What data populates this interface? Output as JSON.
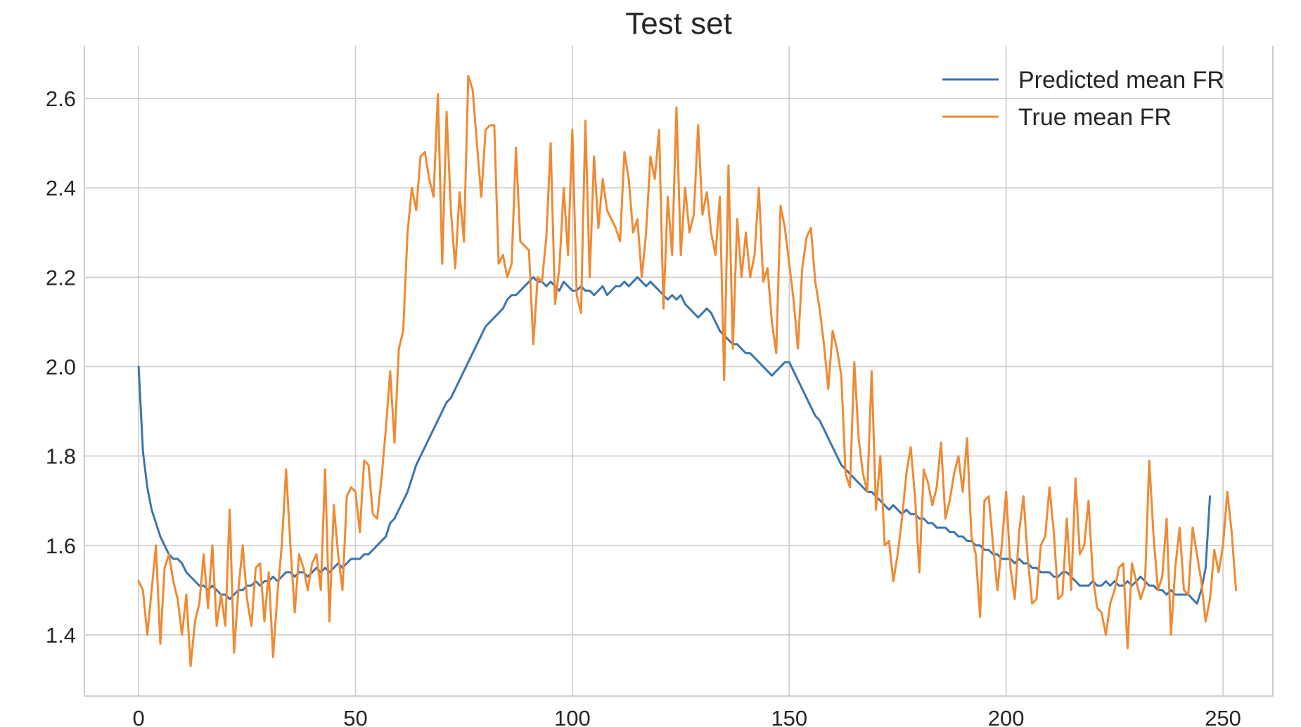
{
  "chart_data": {
    "type": "line",
    "title": "Test set",
    "xlabel": "",
    "ylabel": "",
    "xlim": [
      -12.5,
      261.5
    ],
    "ylim": [
      1.263,
      2.718
    ],
    "xticks": [
      0,
      50,
      100,
      150,
      200,
      250
    ],
    "xtick_labels": [
      "0",
      "50",
      "100",
      "150",
      "200",
      "250"
    ],
    "yticks": [
      1.4,
      1.6,
      1.8,
      2.0,
      2.2,
      2.4,
      2.6
    ],
    "ytick_labels": [
      "1.4",
      "1.6",
      "1.8",
      "2.0",
      "2.2",
      "2.4",
      "2.6"
    ],
    "grid": true,
    "legend_position": "top-right",
    "series": [
      {
        "name": "Predicted mean FR",
        "color": "#3b75af",
        "values": [
          2.0,
          1.81,
          1.73,
          1.68,
          1.65,
          1.62,
          1.6,
          1.58,
          1.57,
          1.57,
          1.56,
          1.54,
          1.53,
          1.52,
          1.51,
          1.51,
          1.5,
          1.51,
          1.5,
          1.49,
          1.49,
          1.48,
          1.49,
          1.5,
          1.5,
          1.51,
          1.51,
          1.52,
          1.51,
          1.52,
          1.52,
          1.53,
          1.52,
          1.53,
          1.54,
          1.54,
          1.53,
          1.54,
          1.54,
          1.53,
          1.54,
          1.55,
          1.54,
          1.55,
          1.54,
          1.55,
          1.56,
          1.55,
          1.56,
          1.57,
          1.57,
          1.57,
          1.58,
          1.58,
          1.59,
          1.6,
          1.61,
          1.62,
          1.65,
          1.66,
          1.68,
          1.7,
          1.72,
          1.75,
          1.78,
          1.8,
          1.82,
          1.84,
          1.86,
          1.88,
          1.9,
          1.92,
          1.93,
          1.95,
          1.97,
          1.99,
          2.01,
          2.03,
          2.05,
          2.07,
          2.09,
          2.1,
          2.11,
          2.12,
          2.13,
          2.15,
          2.16,
          2.16,
          2.17,
          2.18,
          2.19,
          2.2,
          2.19,
          2.19,
          2.18,
          2.19,
          2.18,
          2.17,
          2.19,
          2.18,
          2.17,
          2.17,
          2.18,
          2.17,
          2.17,
          2.16,
          2.17,
          2.18,
          2.16,
          2.17,
          2.18,
          2.18,
          2.19,
          2.18,
          2.19,
          2.2,
          2.19,
          2.18,
          2.19,
          2.18,
          2.17,
          2.16,
          2.15,
          2.16,
          2.15,
          2.16,
          2.14,
          2.13,
          2.12,
          2.11,
          2.12,
          2.13,
          2.12,
          2.1,
          2.08,
          2.07,
          2.06,
          2.05,
          2.05,
          2.04,
          2.03,
          2.03,
          2.02,
          2.01,
          2.0,
          1.99,
          1.98,
          1.99,
          2.0,
          2.01,
          2.01,
          1.99,
          1.97,
          1.95,
          1.93,
          1.91,
          1.89,
          1.88,
          1.86,
          1.84,
          1.82,
          1.8,
          1.78,
          1.77,
          1.76,
          1.75,
          1.74,
          1.73,
          1.72,
          1.72,
          1.71,
          1.7,
          1.69,
          1.68,
          1.69,
          1.68,
          1.67,
          1.68,
          1.67,
          1.67,
          1.66,
          1.66,
          1.65,
          1.65,
          1.64,
          1.64,
          1.64,
          1.63,
          1.63,
          1.62,
          1.62,
          1.61,
          1.61,
          1.6,
          1.6,
          1.59,
          1.59,
          1.58,
          1.58,
          1.57,
          1.57,
          1.57,
          1.56,
          1.57,
          1.56,
          1.56,
          1.55,
          1.55,
          1.54,
          1.54,
          1.54,
          1.53,
          1.53,
          1.54,
          1.54,
          1.53,
          1.52,
          1.51,
          1.51,
          1.51,
          1.52,
          1.51,
          1.51,
          1.52,
          1.51,
          1.52,
          1.51,
          1.51,
          1.52,
          1.51,
          1.52,
          1.53,
          1.52,
          1.51,
          1.51,
          1.5,
          1.5,
          1.49,
          1.5,
          1.49,
          1.49,
          1.49,
          1.49,
          1.48,
          1.47,
          1.5,
          1.55,
          1.71
        ]
      },
      {
        "name": "True mean FR",
        "color": "#ef8a33",
        "values": [
          1.52,
          1.5,
          1.4,
          1.5,
          1.6,
          1.38,
          1.55,
          1.58,
          1.52,
          1.48,
          1.4,
          1.49,
          1.33,
          1.43,
          1.47,
          1.58,
          1.46,
          1.6,
          1.42,
          1.49,
          1.42,
          1.68,
          1.36,
          1.5,
          1.6,
          1.48,
          1.42,
          1.55,
          1.56,
          1.43,
          1.54,
          1.35,
          1.49,
          1.6,
          1.77,
          1.6,
          1.45,
          1.58,
          1.55,
          1.5,
          1.56,
          1.58,
          1.5,
          1.77,
          1.43,
          1.69,
          1.58,
          1.5,
          1.71,
          1.73,
          1.72,
          1.63,
          1.79,
          1.78,
          1.67,
          1.66,
          1.75,
          1.86,
          1.99,
          1.83,
          2.04,
          2.08,
          2.3,
          2.4,
          2.35,
          2.47,
          2.48,
          2.42,
          2.38,
          2.61,
          2.23,
          2.57,
          2.35,
          2.22,
          2.39,
          2.28,
          2.65,
          2.62,
          2.5,
          2.38,
          2.53,
          2.54,
          2.54,
          2.23,
          2.25,
          2.2,
          2.23,
          2.49,
          2.28,
          2.27,
          2.26,
          2.05,
          2.2,
          2.19,
          2.29,
          2.5,
          2.14,
          2.22,
          2.4,
          2.25,
          2.53,
          2.16,
          2.12,
          2.55,
          2.2,
          2.47,
          2.31,
          2.42,
          2.35,
          2.33,
          2.31,
          2.28,
          2.48,
          2.42,
          2.3,
          2.33,
          2.2,
          2.3,
          2.47,
          2.42,
          2.53,
          2.13,
          2.38,
          2.25,
          2.58,
          2.25,
          2.4,
          2.3,
          2.34,
          2.54,
          2.34,
          2.39,
          2.3,
          2.25,
          2.38,
          1.97,
          2.45,
          2.04,
          2.33,
          2.2,
          2.3,
          2.2,
          2.25,
          2.4,
          2.19,
          2.22,
          2.1,
          2.03,
          2.36,
          2.31,
          2.23,
          2.15,
          2.04,
          2.22,
          2.29,
          2.31,
          2.19,
          2.13,
          2.05,
          1.95,
          2.08,
          2.04,
          1.98,
          1.76,
          1.73,
          2.01,
          1.84,
          1.76,
          1.72,
          1.99,
          1.68,
          1.8,
          1.6,
          1.61,
          1.52,
          1.58,
          1.66,
          1.76,
          1.82,
          1.71,
          1.54,
          1.77,
          1.74,
          1.69,
          1.73,
          1.83,
          1.66,
          1.7,
          1.76,
          1.8,
          1.72,
          1.84,
          1.62,
          1.58,
          1.44,
          1.7,
          1.71,
          1.6,
          1.5,
          1.6,
          1.72,
          1.55,
          1.48,
          1.63,
          1.71,
          1.57,
          1.47,
          1.48,
          1.6,
          1.62,
          1.73,
          1.63,
          1.48,
          1.49,
          1.66,
          1.5,
          1.75,
          1.58,
          1.6,
          1.7,
          1.53,
          1.46,
          1.45,
          1.4,
          1.47,
          1.5,
          1.55,
          1.56,
          1.37,
          1.56,
          1.52,
          1.48,
          1.51,
          1.79,
          1.62,
          1.5,
          1.53,
          1.66,
          1.4,
          1.55,
          1.64,
          1.5,
          1.49,
          1.64,
          1.58,
          1.52,
          1.43,
          1.48,
          1.59,
          1.54,
          1.6,
          1.72,
          1.63,
          1.5
        ]
      }
    ]
  }
}
